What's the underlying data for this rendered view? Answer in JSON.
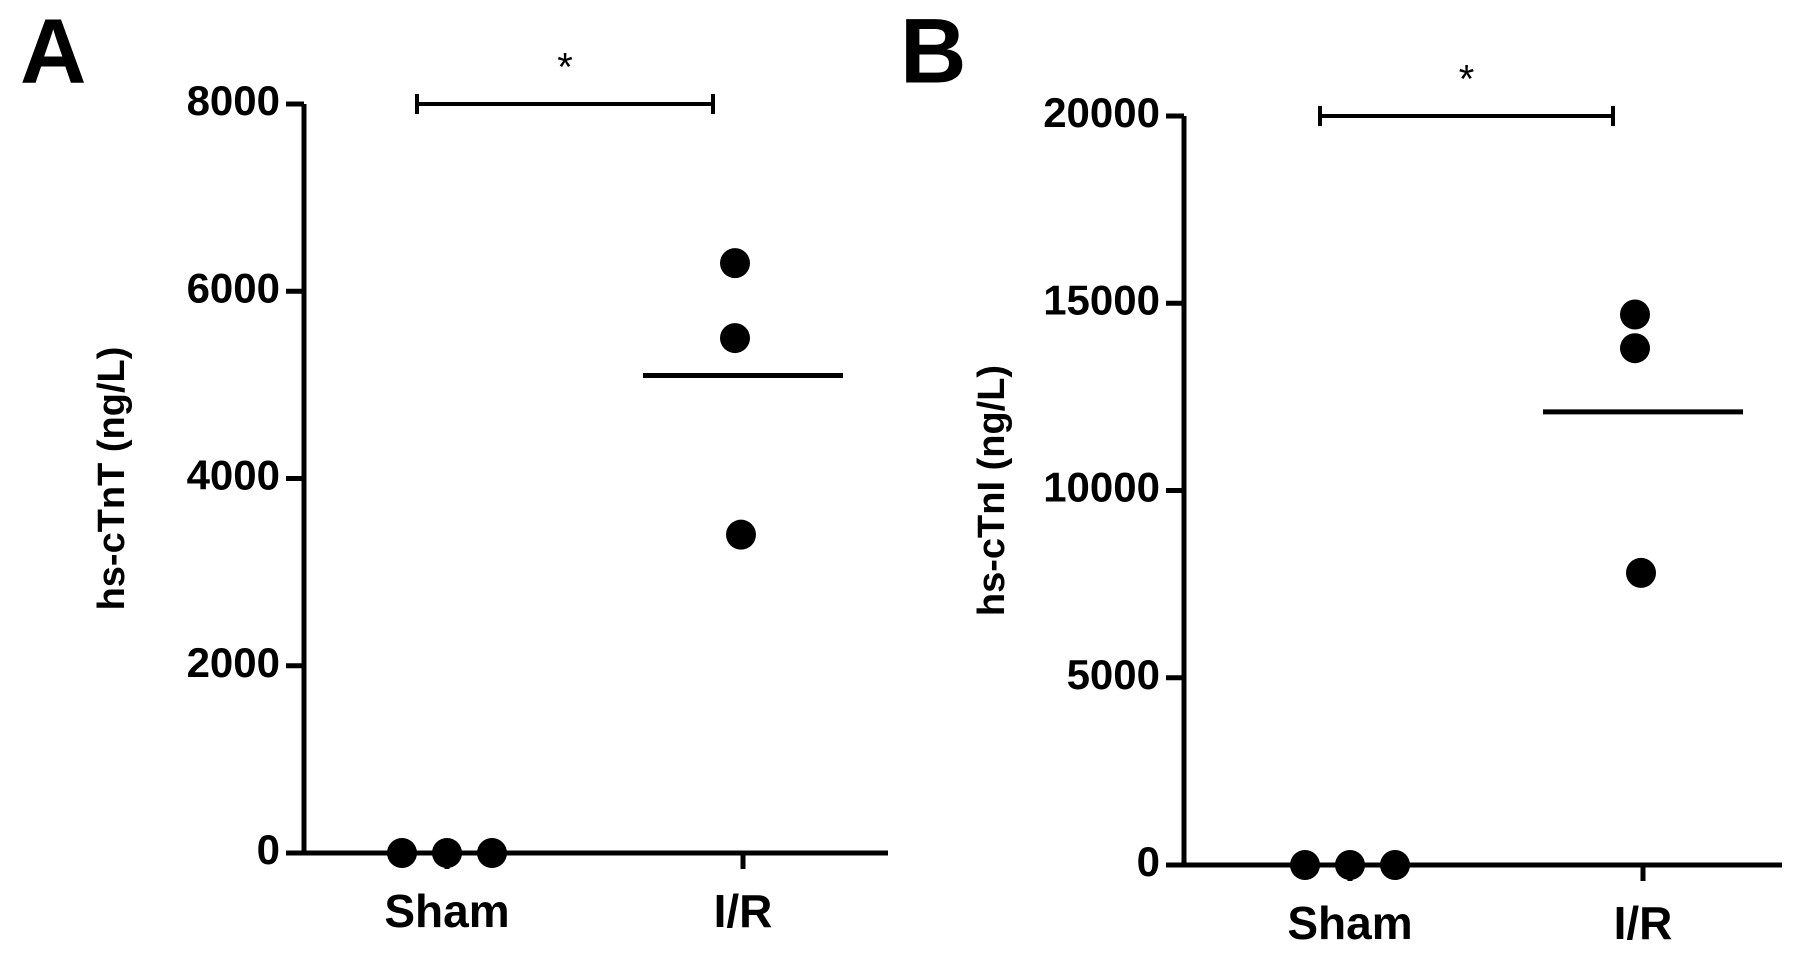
{
  "chart_data": [
    {
      "type": "dot",
      "panel": "A",
      "y_label": "hs-cTnT (ng/L)",
      "categories": [
        "Sham",
        "I/R"
      ],
      "points": [
        [
          0,
          0,
          0
        ],
        [
          6300,
          5500,
          3400
        ]
      ],
      "means": [
        0,
        5100
      ],
      "color": "#000000",
      "ylim": [
        0,
        8000
      ],
      "yticks": [
        0,
        2000,
        4000,
        6000,
        8000
      ],
      "annotation": "*"
    },
    {
      "type": "dot",
      "panel": "B",
      "y_label": "hs-cTnI (ng/L)",
      "categories": [
        "Sham",
        "I/R"
      ],
      "points": [
        [
          0,
          0,
          0
        ],
        [
          14700,
          13800,
          7800
        ]
      ],
      "means": [
        0,
        12100
      ],
      "color": "#000000",
      "ylim": [
        0,
        20000
      ],
      "yticks": [
        0,
        5000,
        10000,
        15000,
        20000
      ],
      "annotation": "*"
    }
  ]
}
